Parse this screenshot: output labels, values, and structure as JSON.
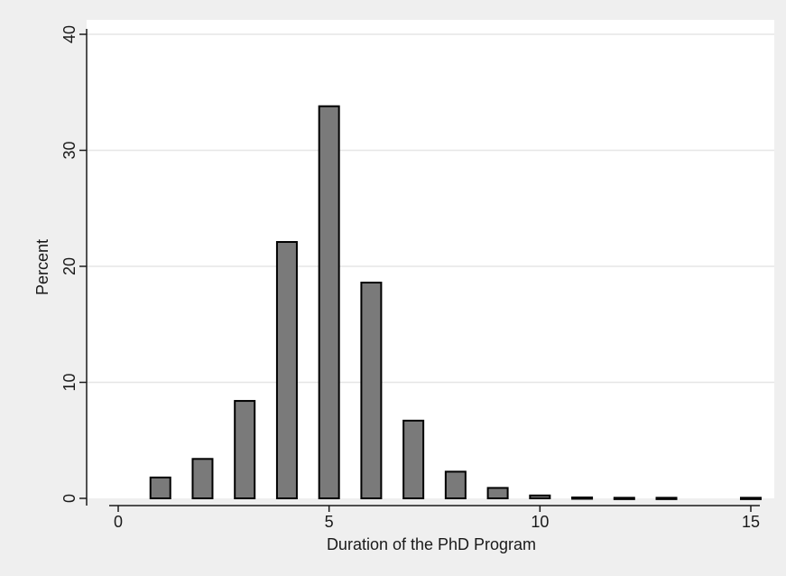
{
  "chart_data": {
    "type": "bar",
    "title": "",
    "xlabel": "Duration of the PhD Program",
    "ylabel": "Percent",
    "x": [
      1,
      2,
      3,
      4,
      5,
      6,
      7,
      8,
      9,
      10,
      11,
      12,
      13,
      15
    ],
    "values": [
      1.8,
      3.4,
      8.4,
      22.1,
      33.8,
      18.6,
      6.7,
      2.3,
      0.9,
      0.25,
      0.08,
      0.05,
      0.05,
      0.05
    ],
    "xlim": [
      0,
      15
    ],
    "ylim": [
      0,
      40
    ],
    "xticks": [
      0,
      5,
      10,
      15
    ],
    "yticks": [
      0,
      10,
      20,
      30,
      40
    ],
    "grid": true,
    "colors": {
      "bar_fill": "#7a7a7a",
      "bar_stroke": "#000000",
      "plot_background": "#ffffff",
      "outer_background": "#efefef",
      "grid": "#e6e6e6"
    }
  }
}
